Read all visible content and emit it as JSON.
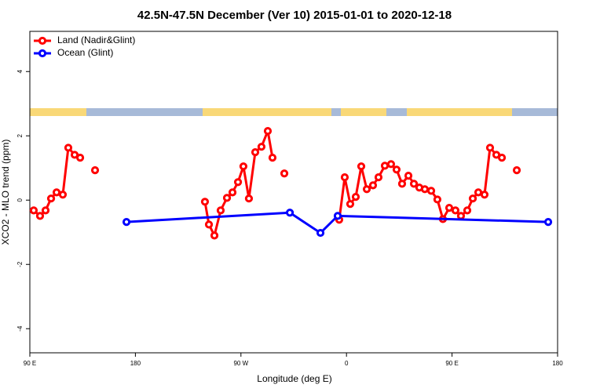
{
  "chart_data": {
    "type": "line",
    "title": "42.5N-47.5N December (Ver 10)   2015-01-01 to 2020-12-18",
    "xlabel": "Longitude (deg E)",
    "ylabel": "XCO2 - MLO trend (ppm)",
    "xlim": [
      90,
      540
    ],
    "ylim": [
      -4.75,
      5.25
    ],
    "xticks": [
      {
        "value": 90,
        "label": "90 E"
      },
      180,
      {
        "value": 270,
        "label": "90 W"
      },
      {
        "value": 360,
        "label": "0"
      },
      {
        "value": 450,
        "label": "90 E"
      },
      {
        "value": 540,
        "label": "180"
      }
    ],
    "yticks": [
      -4,
      -2,
      0,
      2,
      4
    ],
    "legend": "top-left",
    "series": [
      {
        "name": "Land (Nadir&Glint)",
        "color": "#ff0000",
        "x": [
          93.3,
          98.7,
          103.4,
          108.1,
          112.8,
          118.1,
          122.8,
          128.2,
          132.9,
          null,
          145.6,
          null,
          239.3,
          242.7,
          247.4,
          252.7,
          258.1,
          262.8,
          267.5,
          272.1,
          276.8,
          282.2,
          287.5,
          292.9,
          296.9,
          null,
          307.0,
          null,
          353.8,
          358.5,
          363.2,
          367.9,
          372.6,
          377.3,
          382.6,
          387.3,
          392.7,
          398.0,
          402.7,
          407.4,
          412.8,
          417.5,
          422.1,
          426.8,
          432.2,
          437.5,
          442.2,
          447.6,
          452.9,
          457.6,
          463.0,
          467.7,
          472.4,
          477.7,
          482.4,
          487.8,
          492.5,
          null,
          505.2
        ],
        "values": [
          -0.32,
          -0.49,
          -0.32,
          0.05,
          0.24,
          0.17,
          1.63,
          1.41,
          1.32,
          null,
          0.93,
          null,
          -0.05,
          -0.76,
          -1.1,
          -0.32,
          0.07,
          0.24,
          0.56,
          1.05,
          0.05,
          1.49,
          1.66,
          2.15,
          1.32,
          null,
          0.83,
          null,
          -0.61,
          0.71,
          -0.12,
          0.1,
          1.05,
          0.34,
          0.46,
          0.71,
          1.07,
          1.12,
          0.95,
          0.51,
          0.76,
          0.51,
          0.39,
          0.34,
          0.29,
          0.02,
          -0.59,
          -0.24,
          -0.32,
          -0.49,
          -0.32,
          0.05,
          0.24,
          0.17,
          1.63,
          1.41,
          1.32,
          null,
          0.93
        ]
      },
      {
        "name": "Ocean (Glint)",
        "color": "#0000ff",
        "x": [
          172.4,
          311.7,
          337.8,
          352.5,
          532.0
        ],
        "values": [
          -0.68,
          -0.39,
          -1.02,
          -0.49,
          -0.68
        ]
      }
    ]
  }
}
